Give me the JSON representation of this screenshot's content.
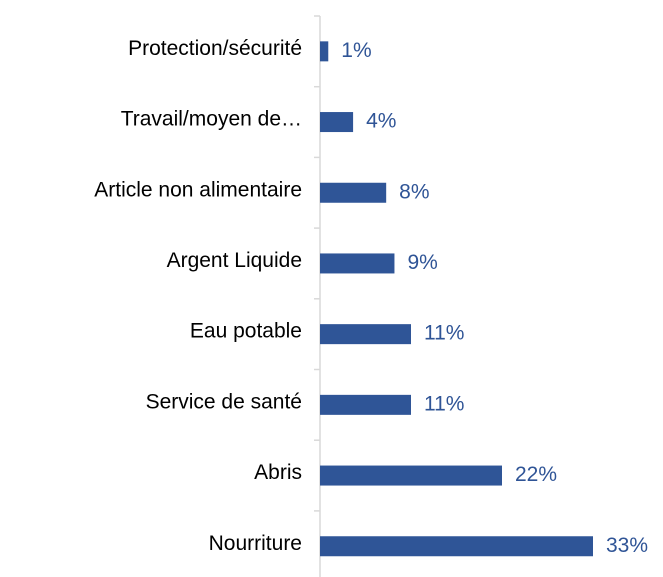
{
  "chart_data": {
    "type": "bar",
    "orientation": "horizontal",
    "categories": [
      "Protection/sécurité",
      "Travail/moyen de…",
      "Article non alimentaire",
      "Argent Liquide",
      "Eau potable",
      "Service de santé",
      "Abris",
      "Nourriture"
    ],
    "values": [
      1,
      4,
      8,
      9,
      11,
      11,
      22,
      33
    ],
    "value_labels": [
      "1%",
      "4%",
      "8%",
      "9%",
      "11%",
      "11%",
      "22%",
      "33%"
    ],
    "color": "#2f5597"
  }
}
